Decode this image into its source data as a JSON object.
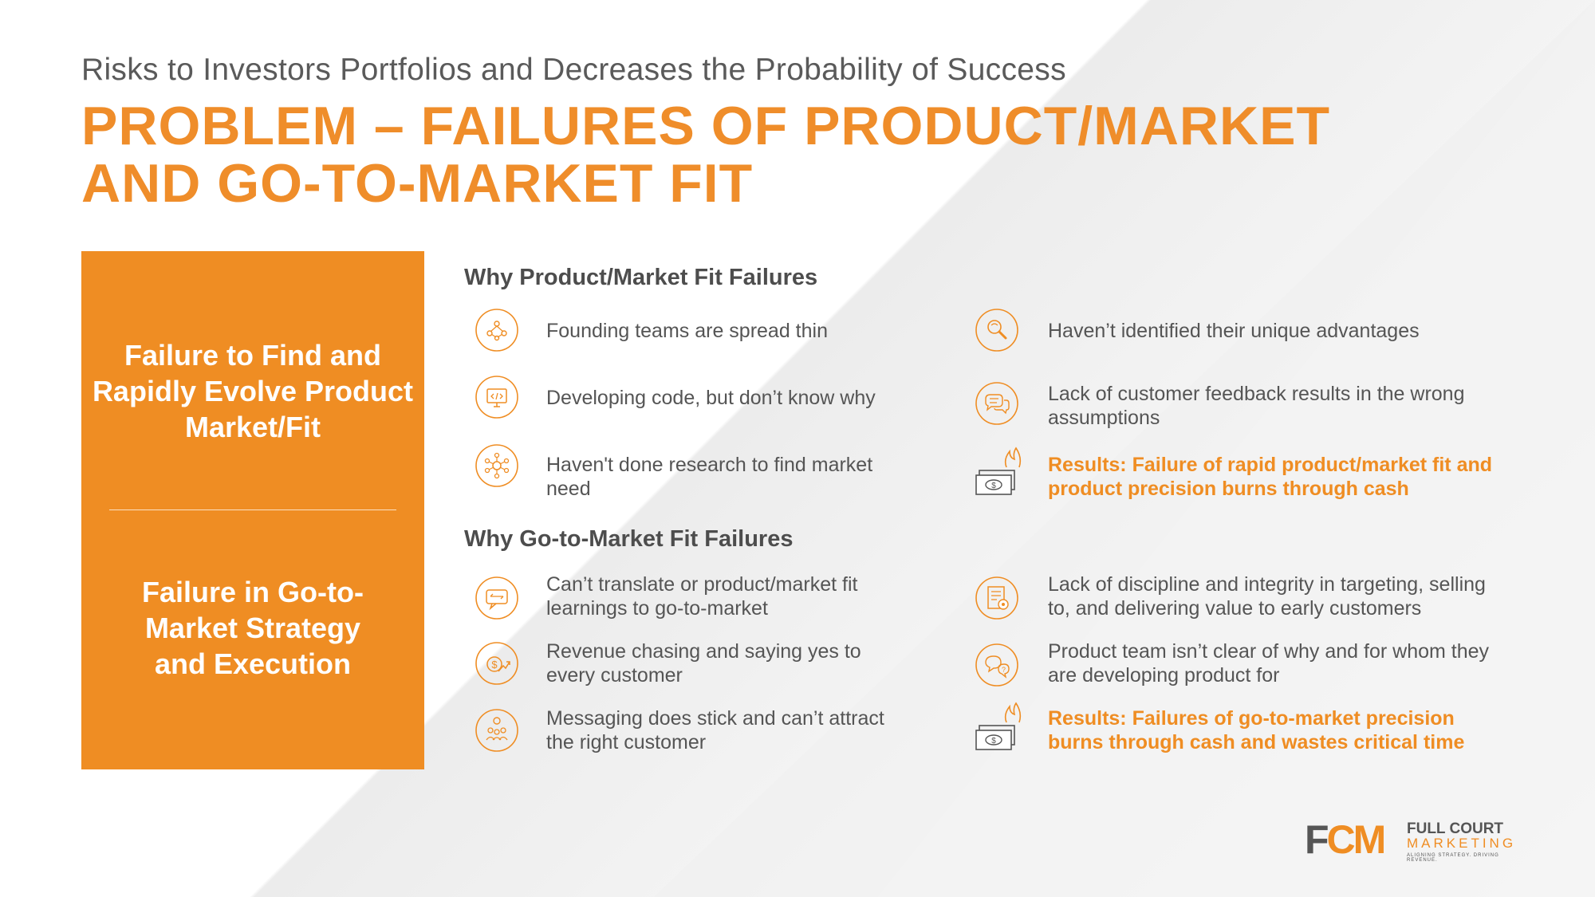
{
  "header": {
    "subtitle": "Risks to Investors Portfolios and Decreases the Probability of Success",
    "title_line1": "PROBLEM –  FAILURES OF PRODUCT/MARKET",
    "title_line2": "AND GO-TO-MARKET FIT"
  },
  "panel": {
    "top_text": "Failure to Find and Rapidly Evolve Product Market/Fit",
    "bottom_text": "Failure in Go-to-Market Strategy and Execution"
  },
  "pmf": {
    "heading": "Why Product/Market Fit Failures",
    "left": [
      {
        "text": "Founding teams are spread thin",
        "icon": "team-network-icon"
      },
      {
        "text": "Developing code, but don’t know why",
        "icon": "code-monitor-icon"
      },
      {
        "text": "Haven't done research to find market need",
        "icon": "research-network-icon"
      }
    ],
    "right": [
      {
        "text": "Haven’t identified their unique advantages",
        "icon": "magnifier-icon"
      },
      {
        "text": "Lack of customer feedback results in the wrong assumptions",
        "icon": "chat-bubbles-icon"
      },
      {
        "text": "Results: Failure of rapid product/market fit and product precision burns through cash",
        "icon": "burning-cash-icon"
      }
    ]
  },
  "gtm": {
    "heading": "Why Go-to-Market Fit Failures",
    "left": [
      {
        "text": "Can’t translate or product/market fit learnings to go-to-market",
        "icon": "translate-bubble-icon"
      },
      {
        "text": "Revenue chasing and saying yes to every customer",
        "icon": "revenue-chart-icon"
      },
      {
        "text": "Messaging does stick and can’t attract the right customer",
        "icon": "audience-icon"
      }
    ],
    "right": [
      {
        "text": "Lack of discipline and integrity in targeting, selling to, and delivering value to early customers",
        "icon": "target-document-icon"
      },
      {
        "text": "Product team isn’t clear of why and for whom they are developing product for",
        "icon": "question-chat-icon"
      },
      {
        "text": "Results: Failures of go-to-market precision burns through cash and wastes critical time",
        "icon": "burning-cash-icon"
      }
    ]
  },
  "logo": {
    "mark": "FCM",
    "name_top": "FULL COURT",
    "name_bottom": "MARKETING",
    "tagline": "ALIGNING STRATEGY. DRIVING REVENUE."
  },
  "colors": {
    "accent": "#ef8d23",
    "text": "#555555",
    "heading": "#4d4d4d"
  }
}
